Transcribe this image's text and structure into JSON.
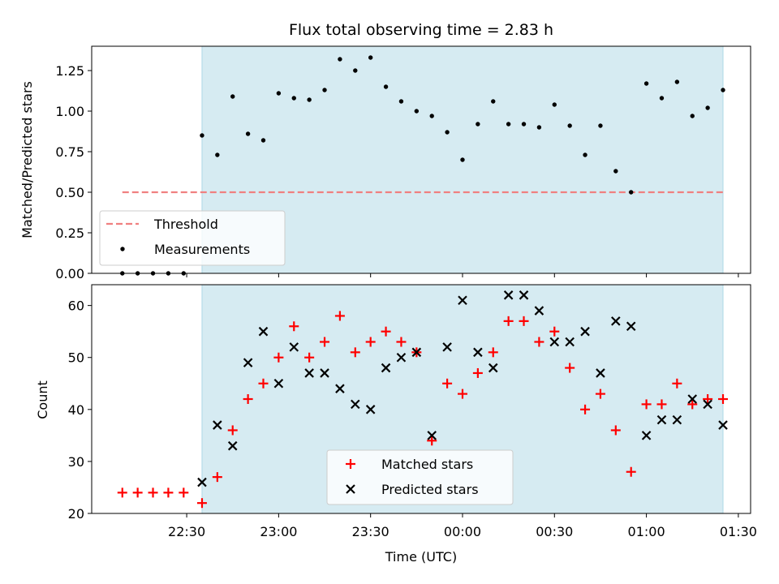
{
  "chart_data": {
    "title": "Flux total observing time = 2.83 h",
    "xlabel": "Time (UTC)",
    "x_unit": "minutes after 22:00 UTC",
    "x_ticks": [
      {
        "value": 30,
        "label": "22:30"
      },
      {
        "value": 60,
        "label": "23:00"
      },
      {
        "value": 90,
        "label": "23:30"
      },
      {
        "value": 120,
        "label": "00:00"
      },
      {
        "value": 150,
        "label": "00:30"
      },
      {
        "value": 180,
        "label": "01:00"
      },
      {
        "value": 210,
        "label": "01:30"
      }
    ],
    "xlim": [
      -1,
      214
    ],
    "observing_window": [
      35,
      205
    ],
    "window_color": "#add8e6",
    "x": [
      9,
      14,
      19,
      24,
      29,
      35,
      40,
      45,
      50,
      55,
      60,
      65,
      70,
      75,
      80,
      85,
      90,
      95,
      100,
      105,
      110,
      115,
      120,
      125,
      130,
      135,
      140,
      145,
      150,
      155,
      160,
      165,
      170,
      175,
      180,
      185,
      190,
      195,
      200,
      205
    ],
    "panels": [
      {
        "type": "scatter",
        "ylabel": "Matched/Predicted stars",
        "ylim": [
          0,
          1.4
        ],
        "y_ticks": [
          {
            "value": 0,
            "label": "0.00"
          },
          {
            "value": 0.25,
            "label": "0.25"
          },
          {
            "value": 0.5,
            "label": "0.50"
          },
          {
            "value": 0.75,
            "label": "0.75"
          },
          {
            "value": 1.0,
            "label": "1.00"
          },
          {
            "value": 1.25,
            "label": "1.25"
          }
        ],
        "legend_position": "lower-left",
        "threshold": {
          "name": "Threshold",
          "value": 0.5,
          "x_range": [
            9,
            205
          ],
          "color": "#f08080"
        },
        "measurements": {
          "name": "Measurements",
          "color": "#000000",
          "values": [
            0,
            0,
            0,
            0,
            0,
            0.85,
            0.73,
            1.09,
            0.86,
            0.82,
            1.11,
            1.08,
            1.07,
            1.13,
            1.32,
            1.25,
            1.33,
            1.15,
            1.06,
            1.0,
            0.97,
            0.87,
            0.7,
            0.92,
            1.06,
            0.92,
            0.92,
            0.9,
            1.04,
            0.91,
            0.73,
            0.91,
            0.63,
            0.5,
            1.17,
            1.08,
            1.18,
            0.97,
            1.02,
            1.13
          ]
        }
      },
      {
        "type": "scatter",
        "ylabel": "Count",
        "ylim": [
          20,
          64
        ],
        "y_ticks": [
          {
            "value": 20,
            "label": "20"
          },
          {
            "value": 30,
            "label": "30"
          },
          {
            "value": 40,
            "label": "40"
          },
          {
            "value": 50,
            "label": "50"
          },
          {
            "value": 60,
            "label": "60"
          }
        ],
        "legend_position": "lower-center",
        "series": [
          {
            "name": "Matched stars",
            "marker": "plus",
            "color": "#ff0000",
            "values": [
              24,
              24,
              24,
              24,
              24,
              22,
              27,
              36,
              42,
              45,
              50,
              56,
              50,
              53,
              58,
              51,
              53,
              55,
              53,
              51,
              34,
              45,
              43,
              47,
              51,
              57,
              57,
              53,
              55,
              48,
              40,
              43,
              36,
              28,
              41,
              41,
              45,
              41,
              42,
              42
            ]
          },
          {
            "name": "Predicted stars",
            "marker": "x",
            "color": "#000000",
            "values": [
              null,
              null,
              null,
              null,
              null,
              26,
              37,
              33,
              49,
              55,
              45,
              52,
              47,
              47,
              44,
              41,
              40,
              48,
              50,
              51,
              35,
              52,
              61,
              51,
              48,
              62,
              62,
              59,
              53,
              53,
              55,
              47,
              57,
              56,
              35,
              38,
              38,
              42,
              41,
              37
            ]
          }
        ]
      }
    ]
  }
}
